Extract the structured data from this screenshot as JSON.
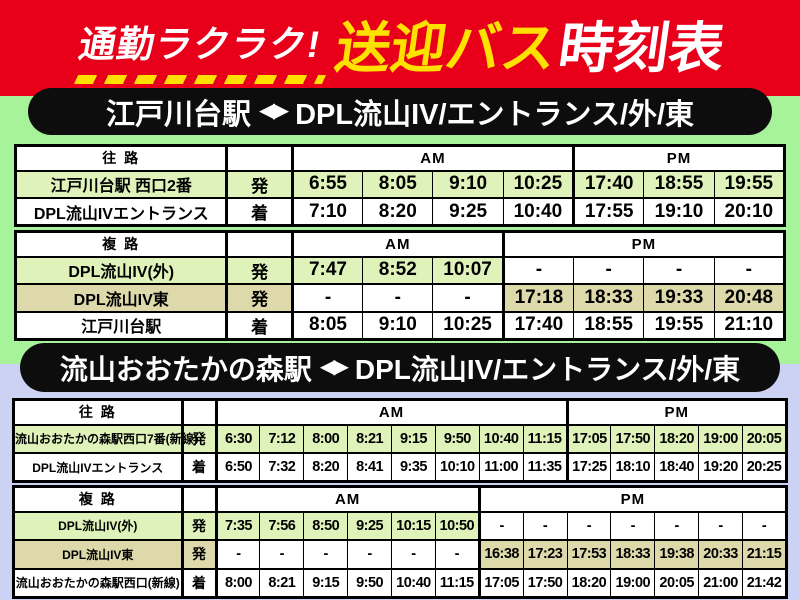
{
  "title": {
    "catch": "通勤ラクラク!",
    "highlight": "送迎バス",
    "rest": "時刻表"
  },
  "colors": {
    "banner_red": "#e8001a",
    "accent_yellow": "#ffe100",
    "section_green": "#a7f399",
    "section_lavender": "#cbd2f4",
    "row_green": "#def2ba",
    "row_tan": "#ded9ab",
    "bar_black": "#0d0d0d"
  },
  "sections": [
    {
      "route": "江戸川台駅",
      "route_arrows": "◀▶",
      "route_dest": "DPL流山IV/エントランス/外/東",
      "tables": [
        {
          "direction": "往 路",
          "am": "AM",
          "pm": "PM",
          "am_cols": 4,
          "pm_cols": 3,
          "rows": [
            {
              "station": "江戸川台駅 西口2番",
              "mark": "発",
              "color": "green",
              "times": [
                "6:55",
                "8:05",
                "9:10",
                "10:25",
                "17:40",
                "18:55",
                "19:55"
              ]
            },
            {
              "station": "DPL流山IVエントランス",
              "mark": "着",
              "color": "white",
              "times": [
                "7:10",
                "8:20",
                "9:25",
                "10:40",
                "17:55",
                "19:10",
                "20:10"
              ]
            }
          ]
        },
        {
          "direction": "複 路",
          "am": "AM",
          "pm": "PM",
          "am_cols": 3,
          "pm_cols": 4,
          "rows": [
            {
              "station": "DPL流山IV(外)",
              "mark": "発",
              "color": "green",
              "times": [
                "7:47",
                "8:52",
                "10:07",
                "-",
                "-",
                "-",
                "-"
              ]
            },
            {
              "station": "DPL流山IV東",
              "mark": "発",
              "color": "tan",
              "times": [
                "-",
                "-",
                "-",
                "17:18",
                "18:33",
                "19:33",
                "20:48"
              ]
            },
            {
              "station": "江戸川台駅",
              "mark": "着",
              "color": "white",
              "times": [
                "8:05",
                "9:10",
                "10:25",
                "17:40",
                "18:55",
                "19:55",
                "21:10"
              ]
            }
          ]
        }
      ]
    },
    {
      "route": "流山おおたかの森駅",
      "route_arrows": "◀▶",
      "route_dest": "DPL流山IV/エントランス/外/東",
      "tables": [
        {
          "direction": "往 路",
          "am": "AM",
          "pm": "PM",
          "am_cols": 8,
          "pm_cols": 5,
          "rows": [
            {
              "station": "流山おおたかの森駅西口7番(新線)",
              "mark": "発",
              "color": "green",
              "times": [
                "6:30",
                "7:12",
                "8:00",
                "8:21",
                "9:15",
                "9:50",
                "10:40",
                "11:15",
                "17:05",
                "17:50",
                "18:20",
                "19:00",
                "20:05"
              ]
            },
            {
              "station": "DPL流山IVエントランス",
              "mark": "着",
              "color": "white",
              "times": [
                "6:50",
                "7:32",
                "8:20",
                "8:41",
                "9:35",
                "10:10",
                "11:00",
                "11:35",
                "17:25",
                "18:10",
                "18:40",
                "19:20",
                "20:25"
              ]
            }
          ]
        },
        {
          "direction": "複 路",
          "am": "AM",
          "pm": "PM",
          "am_cols": 6,
          "pm_cols": 7,
          "rows": [
            {
              "station": "DPL流山IV(外)",
              "mark": "発",
              "color": "green",
              "times": [
                "7:35",
                "7:56",
                "8:50",
                "9:25",
                "10:15",
                "10:50",
                "-",
                "-",
                "-",
                "-",
                "-",
                "-",
                "-"
              ]
            },
            {
              "station": "DPL流山IV東",
              "mark": "発",
              "color": "tan",
              "times": [
                "-",
                "-",
                "-",
                "-",
                "-",
                "-",
                "16:38",
                "17:23",
                "17:53",
                "18:33",
                "19:38",
                "20:33",
                "21:15"
              ]
            },
            {
              "station": "流山おおたかの森駅西口(新線)",
              "mark": "着",
              "color": "white",
              "times": [
                "8:00",
                "8:21",
                "9:15",
                "9:50",
                "10:40",
                "11:15",
                "17:05",
                "17:50",
                "18:20",
                "19:00",
                "20:05",
                "21:00",
                "21:42"
              ]
            }
          ]
        }
      ]
    }
  ]
}
